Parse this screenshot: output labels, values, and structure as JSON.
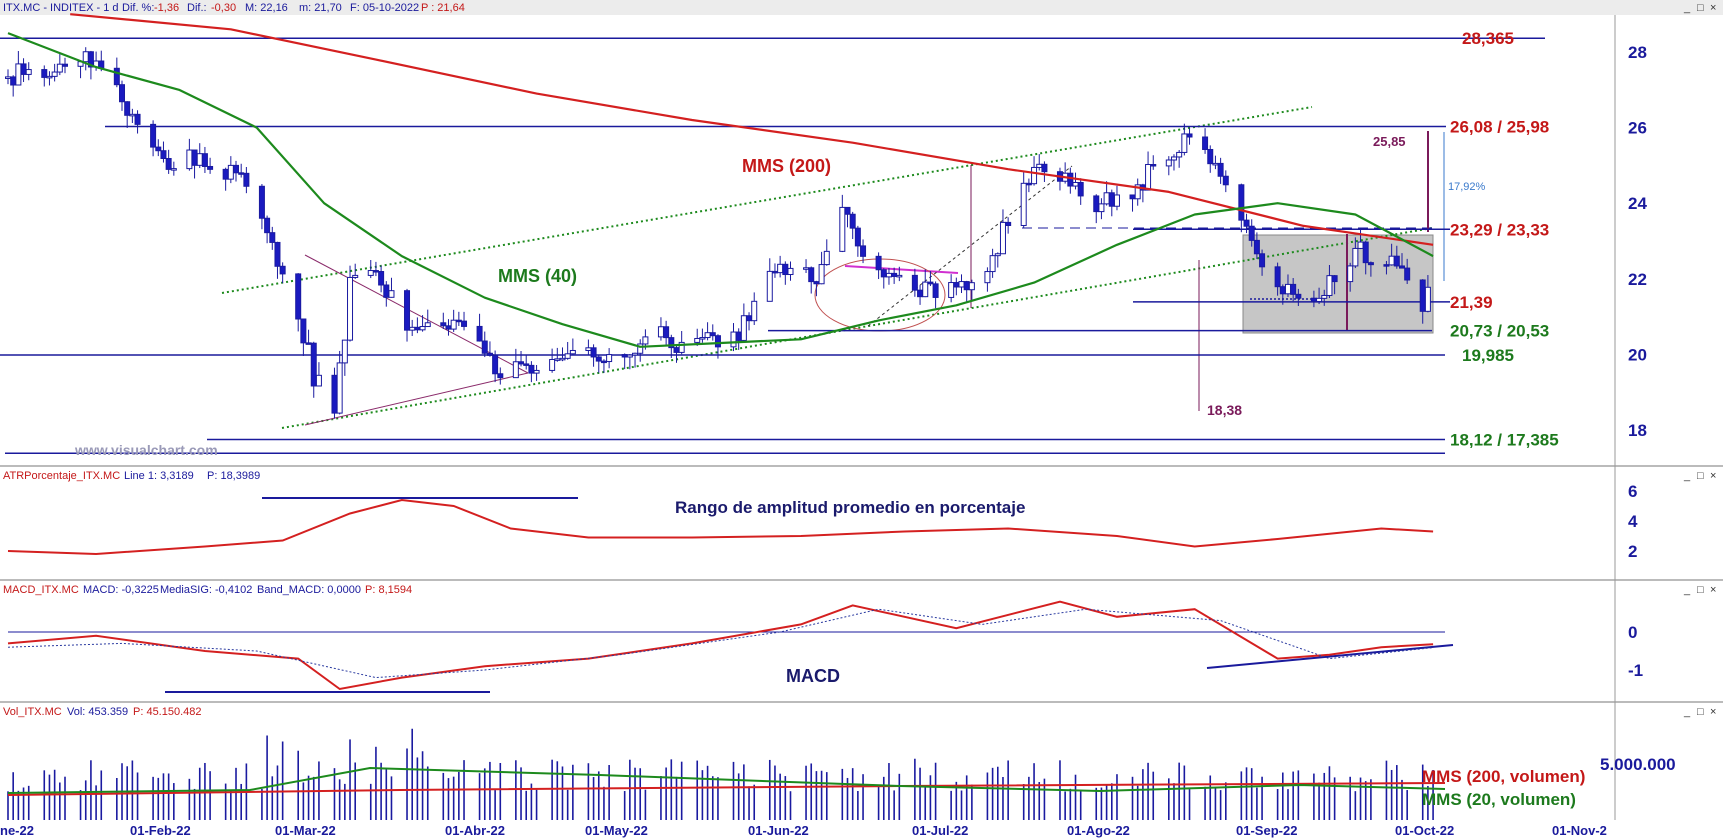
{
  "window": {
    "price_header": {
      "symbol": "ITX.MC - INDITEX -  1 d",
      "dif_pct_label": "Dif. %:",
      "dif_pct": "-1,36",
      "dif_label": "Dif.:",
      "dif": "-0,30",
      "max": "M: 22,16",
      "min": "m: 21,70",
      "date": "F: 05-10-2022",
      "last": "P : 21,64"
    },
    "atr_header": {
      "name": "ATRPorcentaje_ITX.MC",
      "line": "Line 1: 3,3189",
      "p": "P: 18,3989"
    },
    "macd_header": {
      "name": "MACD_ITX.MC",
      "macd": "MACD: -0,3225",
      "sig": "MediaSIG: -0,4102",
      "band": "Band_MACD: 0,0000",
      "p": "P: 8,1594"
    },
    "vol_header": {
      "name": "Vol_ITX.MC",
      "vol": "Vol: 453.359",
      "p": "P: 45.150.482"
    },
    "pane_buttons": [
      "_",
      "□",
      "×"
    ],
    "watermark": "www.visualchart.com"
  },
  "chart_data": [
    {
      "type": "candlestick",
      "id": "price",
      "ylim": [
        17,
        29
      ],
      "yticks": [
        18,
        20,
        22,
        24,
        26,
        28
      ],
      "x_labels": [
        "ne-22",
        "01-Feb-22",
        "01-Mar-22",
        "01-Abr-22",
        "01-May-22",
        "01-Jun-22",
        "01-Jul-22",
        "01-Ago-22",
        "01-Sep-22",
        "01-Oct-22",
        "01-Nov-2"
      ],
      "date_range": [
        "2022-01-03",
        "2022-11-01"
      ],
      "close_path": [
        [
          "2022-01-03",
          27.3
        ],
        [
          "2022-01-07",
          27.5
        ],
        [
          "2022-01-12",
          27.4
        ],
        [
          "2022-01-18",
          28.1
        ],
        [
          "2022-01-21",
          27.4
        ],
        [
          "2022-01-25",
          26.8
        ],
        [
          "2022-01-31",
          25.6
        ],
        [
          "2022-02-03",
          24.8
        ],
        [
          "2022-02-08",
          25.3
        ],
        [
          "2022-02-11",
          24.8
        ],
        [
          "2022-02-16",
          24.9
        ],
        [
          "2022-02-21",
          23.8
        ],
        [
          "2022-02-24",
          22.6
        ],
        [
          "2022-02-28",
          21.2
        ],
        [
          "2022-03-03",
          19.4
        ],
        [
          "2022-03-07",
          18.4
        ],
        [
          "2022-03-10",
          21.8
        ],
        [
          "2022-03-15",
          22.1
        ],
        [
          "2022-03-18",
          21.4
        ],
        [
          "2022-03-23",
          20.5
        ],
        [
          "2022-03-28",
          20.6
        ],
        [
          "2022-03-31",
          20.8
        ],
        [
          "2022-04-05",
          19.9
        ],
        [
          "2022-04-08",
          19.4
        ],
        [
          "2022-04-13",
          19.6
        ],
        [
          "2022-04-20",
          19.7
        ],
        [
          "2022-04-25",
          20.1
        ],
        [
          "2022-04-29",
          20.0
        ],
        [
          "2022-05-04",
          20.3
        ],
        [
          "2022-05-09",
          20.6
        ],
        [
          "2022-05-13",
          20.1
        ],
        [
          "2022-05-18",
          20.4
        ],
        [
          "2022-05-24",
          20.5
        ],
        [
          "2022-05-27",
          21.3
        ],
        [
          "2022-06-01",
          22.3
        ],
        [
          "2022-06-06",
          22.2
        ],
        [
          "2022-06-09",
          22.1
        ],
        [
          "2022-06-14",
          24.0
        ],
        [
          "2022-06-17",
          22.6
        ],
        [
          "2022-06-22",
          22.2
        ],
        [
          "2022-06-28",
          21.6
        ],
        [
          "2022-07-01",
          21.7
        ],
        [
          "2022-07-06",
          21.9
        ],
        [
          "2022-07-11",
          22.3
        ],
        [
          "2022-07-14",
          23.2
        ],
        [
          "2022-07-19",
          24.6
        ],
        [
          "2022-07-22",
          25.0
        ],
        [
          "2022-07-27",
          24.5
        ],
        [
          "2022-08-01",
          24.0
        ],
        [
          "2022-08-05",
          24.1
        ],
        [
          "2022-08-10",
          24.6
        ],
        [
          "2022-08-16",
          25.4
        ],
        [
          "2022-08-19",
          25.8
        ],
        [
          "2022-08-24",
          25.0
        ],
        [
          "2022-08-29",
          23.8
        ],
        [
          "2022-09-01",
          22.6
        ],
        [
          "2022-09-05",
          21.9
        ],
        [
          "2022-09-08",
          21.6
        ],
        [
          "2022-09-13",
          21.3
        ],
        [
          "2022-09-16",
          22.2
        ],
        [
          "2022-09-21",
          22.7
        ],
        [
          "2022-09-26",
          22.5
        ],
        [
          "2022-09-29",
          22.0
        ],
        [
          "2022-10-03",
          21.4
        ],
        [
          "2022-10-05",
          21.64
        ]
      ],
      "series": [
        {
          "name": "MMS (200)",
          "color": "#d42020",
          "points": [
            [
              "2022-01-15",
              29.0
            ],
            [
              "2022-02-15",
              28.6
            ],
            [
              "2022-03-15",
              27.8
            ],
            [
              "2022-04-15",
              26.9
            ],
            [
              "2022-05-15",
              26.2
            ],
            [
              "2022-06-15",
              25.6
            ],
            [
              "2022-07-15",
              24.9
            ],
            [
              "2022-08-15",
              24.3
            ],
            [
              "2022-09-10",
              23.4
            ],
            [
              "2022-10-05",
              22.9
            ]
          ]
        },
        {
          "name": "MMS (40)",
          "color": "#1d8a1d",
          "points": [
            [
              "2022-01-03",
              28.5
            ],
            [
              "2022-01-20",
              27.6
            ],
            [
              "2022-02-05",
              27.0
            ],
            [
              "2022-02-20",
              26.0
            ],
            [
              "2022-03-05",
              24.0
            ],
            [
              "2022-03-20",
              22.6
            ],
            [
              "2022-04-05",
              21.5
            ],
            [
              "2022-04-20",
              20.8
            ],
            [
              "2022-05-05",
              20.2
            ],
            [
              "2022-05-20",
              20.3
            ],
            [
              "2022-06-05",
              20.4
            ],
            [
              "2022-06-20",
              20.9
            ],
            [
              "2022-07-05",
              21.3
            ],
            [
              "2022-07-20",
              21.9
            ],
            [
              "2022-08-05",
              22.9
            ],
            [
              "2022-08-20",
              23.7
            ],
            [
              "2022-09-05",
              24.0
            ],
            [
              "2022-09-20",
              23.7
            ],
            [
              "2022-10-05",
              22.6
            ]
          ]
        }
      ],
      "horizontal_levels": [
        {
          "label": "28,365",
          "value": 28.365,
          "color": "#c41818"
        },
        {
          "label": "26,08 / 25,98",
          "value": 26.03,
          "color": "#c41818"
        },
        {
          "label": "23,29 / 23,33",
          "value": 23.31,
          "color": "#c41818"
        },
        {
          "label": "21,39",
          "value": 21.39,
          "color": "#c41818"
        },
        {
          "label": "20,73 / 20,53",
          "value": 20.63,
          "color": "#1d7a1d"
        },
        {
          "label": "19,985",
          "value": 19.985,
          "color": "#1d7a1d"
        },
        {
          "label": "18,12 / 17,385",
          "value": 17.75,
          "color": "#1d7a1d"
        }
      ],
      "annotations": {
        "ma200_label": "MMS (200)",
        "ma40_label": "MMS (40)",
        "measure_top": "25,85",
        "measure_pct": "17,92%",
        "low_marker": "18,38"
      }
    },
    {
      "type": "line",
      "id": "atr",
      "title": "Rango de amplitud promedio en porcentaje",
      "ylim": [
        1,
        6.5
      ],
      "yticks": [
        2,
        4,
        6
      ],
      "series": [
        {
          "name": "ATR %",
          "color": "#d42020",
          "points": [
            [
              "2022-01-03",
              2.0
            ],
            [
              "2022-01-20",
              1.8
            ],
            [
              "2022-02-10",
              2.3
            ],
            [
              "2022-02-25",
              2.7
            ],
            [
              "2022-03-10",
              4.5
            ],
            [
              "2022-03-20",
              5.4
            ],
            [
              "2022-03-30",
              5.0
            ],
            [
              "2022-04-10",
              3.5
            ],
            [
              "2022-04-25",
              2.9
            ],
            [
              "2022-05-15",
              2.9
            ],
            [
              "2022-06-05",
              3.0
            ],
            [
              "2022-06-25",
              3.3
            ],
            [
              "2022-07-15",
              3.5
            ],
            [
              "2022-08-05",
              3.0
            ],
            [
              "2022-08-20",
              2.3
            ],
            [
              "2022-09-05",
              2.8
            ],
            [
              "2022-09-25",
              3.5
            ],
            [
              "2022-10-05",
              3.3
            ]
          ]
        }
      ]
    },
    {
      "type": "line",
      "id": "macd",
      "title": "MACD",
      "ylim": [
        -1.8,
        1.0
      ],
      "yticks": [
        0,
        -1
      ],
      "series": [
        {
          "name": "MACD",
          "color": "#d42020",
          "points": [
            [
              "2022-01-03",
              -0.3
            ],
            [
              "2022-01-20",
              -0.1
            ],
            [
              "2022-02-10",
              -0.5
            ],
            [
              "2022-02-28",
              -0.7
            ],
            [
              "2022-03-08",
              -1.5
            ],
            [
              "2022-03-20",
              -1.2
            ],
            [
              "2022-04-05",
              -0.9
            ],
            [
              "2022-04-25",
              -0.7
            ],
            [
              "2022-05-15",
              -0.3
            ],
            [
              "2022-06-05",
              0.2
            ],
            [
              "2022-06-15",
              0.7
            ],
            [
              "2022-07-05",
              0.1
            ],
            [
              "2022-07-25",
              0.8
            ],
            [
              "2022-08-05",
              0.4
            ],
            [
              "2022-08-20",
              0.6
            ],
            [
              "2022-09-05",
              -0.7
            ],
            [
              "2022-09-15",
              -0.6
            ],
            [
              "2022-09-25",
              -0.4
            ],
            [
              "2022-10-05",
              -0.32
            ]
          ]
        },
        {
          "name": "MediaSIG",
          "color": "#2a3aa0",
          "points": [
            [
              "2022-01-03",
              -0.4
            ],
            [
              "2022-01-25",
              -0.3
            ],
            [
              "2022-02-20",
              -0.5
            ],
            [
              "2022-03-15",
              -1.2
            ],
            [
              "2022-04-05",
              -1.0
            ],
            [
              "2022-05-01",
              -0.6
            ],
            [
              "2022-06-01",
              0.0
            ],
            [
              "2022-06-20",
              0.6
            ],
            [
              "2022-07-10",
              0.2
            ],
            [
              "2022-07-30",
              0.6
            ],
            [
              "2022-08-25",
              0.3
            ],
            [
              "2022-09-15",
              -0.7
            ],
            [
              "2022-10-05",
              -0.41
            ]
          ]
        }
      ]
    },
    {
      "type": "bar",
      "id": "volume",
      "ylim": [
        0,
        8000000
      ],
      "yticks": [
        "5.000.000"
      ],
      "series": [
        {
          "name": "MMS (200, volumen)",
          "color": "#d42020"
        },
        {
          "name": "MMS (20, volumen)",
          "color": "#1d8a1d"
        }
      ]
    }
  ]
}
